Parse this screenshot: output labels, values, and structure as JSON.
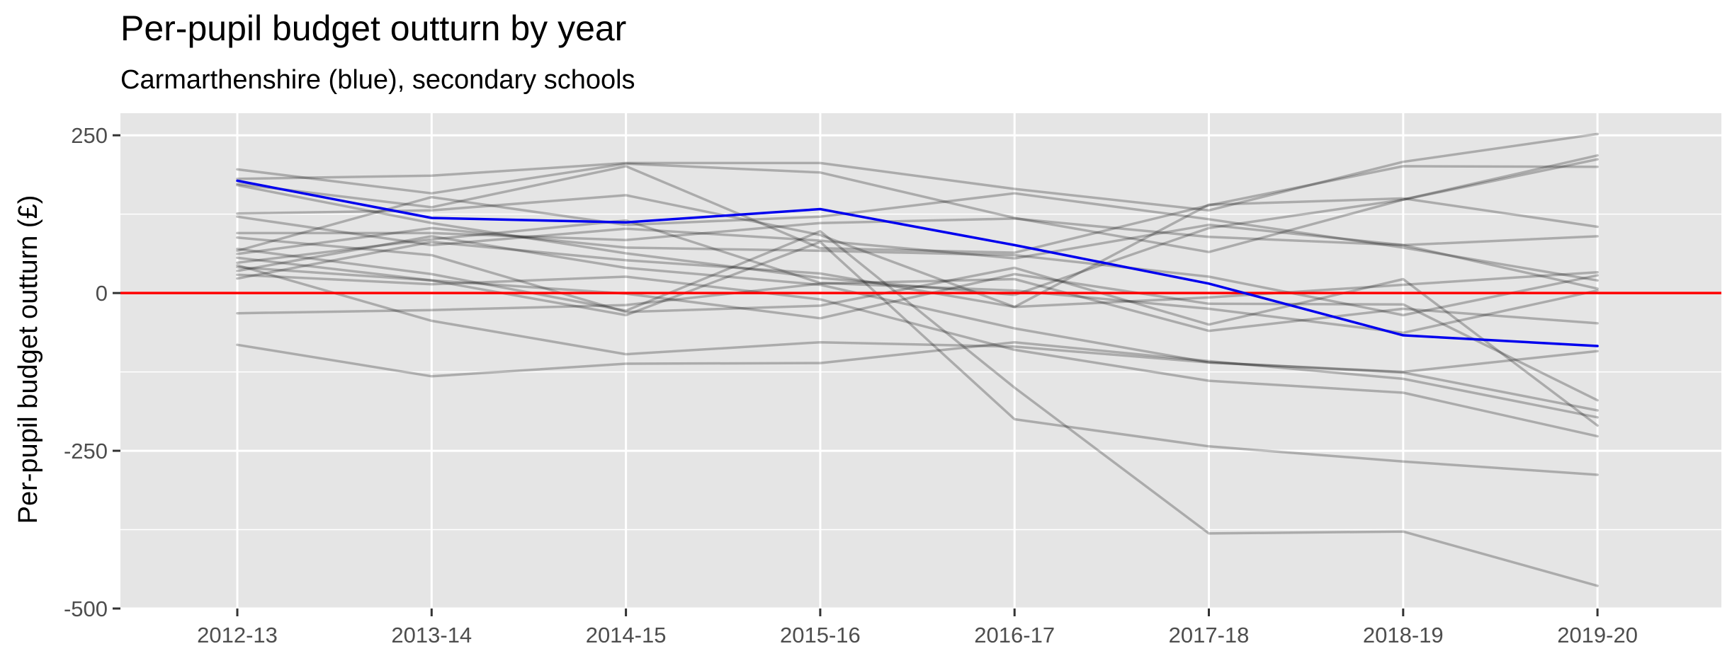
{
  "chart_data": {
    "type": "line",
    "title": "Per-pupil budget outturn by year",
    "subtitle": "Carmarthenshire (blue), secondary schools",
    "xlabel": "",
    "ylabel": "Per-pupil budget outturn (£)",
    "categories": [
      "2012-13",
      "2013-14",
      "2014-15",
      "2015-16",
      "2016-17",
      "2017-18",
      "2018-19",
      "2019-20"
    ],
    "y_ticks": [
      250,
      0,
      -250,
      -500
    ],
    "y_tick_labels": [
      "250",
      "0",
      "-250",
      "-500"
    ],
    "ylim": [
      -500,
      285
    ],
    "grid": true,
    "legend": "none",
    "colors": {
      "highlight": "#0000ee",
      "reference": "#ff0000",
      "other": "#000000",
      "panel": "#e5e5e5",
      "grid": "#ffffff"
    },
    "reference_line": {
      "y": 0,
      "color": "#ff0000"
    },
    "highlight_series": {
      "name": "Carmarthenshire",
      "values": [
        178,
        119,
        112,
        133,
        76,
        15,
        -67,
        -84
      ]
    },
    "series": [
      {
        "values": [
          196,
          158,
          205,
          191,
          119,
          65,
          148,
          218
        ]
      },
      {
        "values": [
          181,
          186,
          206,
          206,
          165,
          131,
          208,
          252
        ]
      },
      {
        "values": [
          173,
          136,
          201,
          71,
          64,
          139,
          201,
          200
        ]
      },
      {
        "values": [
          171,
          111,
          63,
          24,
          -3,
          103,
          148,
          212
        ]
      },
      {
        "values": [
          126,
          131,
          155,
          92,
          -22,
          140,
          150,
          105
        ]
      },
      {
        "values": [
          121,
          76,
          102,
          83,
          55,
          108,
          76,
          7
        ]
      },
      {
        "values": [
          95,
          95,
          84,
          111,
          118,
          89,
          76,
          90
        ]
      },
      {
        "values": [
          67,
          152,
          108,
          121,
          158,
          117,
          72,
          20
        ]
      },
      {
        "values": [
          62,
          103,
          72,
          67,
          60,
          26,
          -35,
          28
        ]
      },
      {
        "values": [
          56,
          20,
          -1,
          -40,
          30,
          -17,
          -18,
          -170
        ]
      },
      {
        "values": [
          48,
          85,
          115,
          16,
          4,
          -25,
          -63,
          4
        ]
      },
      {
        "values": [
          41,
          20,
          -35,
          81,
          -200,
          -243,
          -267,
          -288
        ]
      },
      {
        "values": [
          35,
          90,
          40,
          13,
          -56,
          -110,
          -125,
          -92
        ]
      },
      {
        "values": [
          29,
          14,
          26,
          -10,
          -90,
          -139,
          -158,
          -227
        ]
      },
      {
        "values": [
          -32,
          -27,
          -19,
          15,
          22,
          -60,
          -25,
          -48
        ]
      },
      {
        "values": [
          -82,
          -132,
          -112,
          -111,
          -78,
          -108,
          -136,
          -197
        ]
      },
      {
        "values": [
          44,
          -44,
          -97,
          -78,
          -85,
          -110,
          -126,
          -186
        ]
      },
      {
        "values": [
          23,
          81,
          52,
          31,
          -22,
          -7,
          13,
          33
        ]
      },
      {
        "values": [
          70,
          30,
          -28,
          98,
          -150,
          -381,
          -378,
          -464
        ]
      },
      {
        "values": [
          88,
          60,
          -30,
          -20,
          40,
          -50,
          22,
          -210
        ]
      }
    ]
  }
}
